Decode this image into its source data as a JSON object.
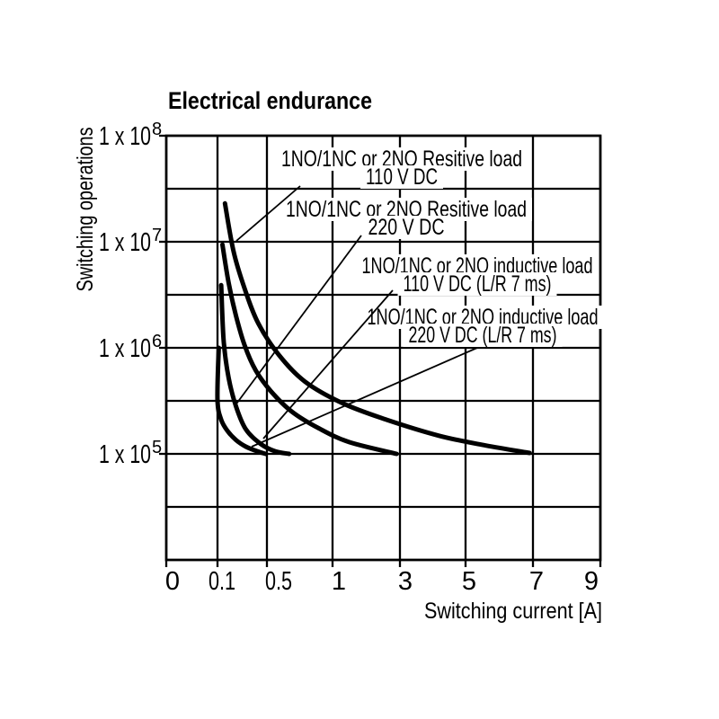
{
  "colors": {
    "ink": "#000000",
    "background": "#ffffff"
  },
  "chart_data": {
    "type": "line",
    "title": "Electrical endurance",
    "xlabel": "Switching current [A]",
    "ylabel": "Switching operations",
    "x_scale": "segmented-linear",
    "y_scale": "log",
    "x_ticks": [
      0,
      0.1,
      0.5,
      1,
      3,
      5,
      7,
      9
    ],
    "x_tick_labels": [
      "0",
      "0.1",
      "0.5",
      "1",
      "3",
      "5",
      "7",
      "9"
    ],
    "y_ticks": [
      100000000,
      10000000,
      1000000,
      100000
    ],
    "y_tick_labels": [
      {
        "base": "1 x 10",
        "exp": "8"
      },
      {
        "base": "1 x 10",
        "exp": "7"
      },
      {
        "base": "1 x 10",
        "exp": "6"
      },
      {
        "base": "1 x 10",
        "exp": "5"
      }
    ],
    "ylim": [
      10000,
      100000000
    ],
    "grid": "on",
    "series": [
      {
        "name": "resistive-load-110v-dc",
        "label": [
          "1NO/1NC or 2NO Resitive load",
          "110 V DC"
        ],
        "points": [
          [
            0.16,
            23000000
          ],
          [
            0.23,
            8100000
          ],
          [
            0.32,
            3600000
          ],
          [
            0.43,
            1700000
          ],
          [
            0.59,
            860000
          ],
          [
            0.79,
            480000
          ],
          [
            1.3,
            300000
          ],
          [
            2.6,
            210000
          ],
          [
            4.2,
            148000
          ],
          [
            5.6,
            120000
          ],
          [
            6.9,
            102000
          ]
        ]
      },
      {
        "name": "resistive-load-220v-dc",
        "label": [
          "1NO/1NC or 2NO Resitive load",
          "220 V DC"
        ],
        "points": [
          [
            0.14,
            9400000
          ],
          [
            0.19,
            4100000
          ],
          [
            0.25,
            2000000
          ],
          [
            0.32,
            1050000
          ],
          [
            0.41,
            610000
          ],
          [
            0.53,
            390000
          ],
          [
            0.69,
            250000
          ],
          [
            0.9,
            173000
          ],
          [
            1.5,
            129000
          ],
          [
            2.9,
            100000
          ]
        ]
      },
      {
        "name": "inductive-load-110v-dc",
        "label": [
          "1NO/1NC or 2NO inductive load",
          "110 V DC (L/R 7 ms)"
        ],
        "points": [
          [
            0.13,
            3900000
          ],
          [
            0.15,
            1150000
          ],
          [
            0.19,
            520000
          ],
          [
            0.25,
            280000
          ],
          [
            0.33,
            170000
          ],
          [
            0.45,
            124000
          ],
          [
            0.56,
            106000
          ],
          [
            0.67,
            100000
          ]
        ]
      },
      {
        "name": "inductive-load-220v-dc",
        "label": [
          "1NO/1NC or 2NO inductive load",
          "220 V DC (L/R 7 ms)"
        ],
        "points": [
          [
            0.11,
            1000000
          ],
          [
            0.1,
            320000
          ],
          [
            0.13,
            210000
          ],
          [
            0.18,
            165000
          ],
          [
            0.25,
            135000
          ],
          [
            0.33,
            117000
          ],
          [
            0.42,
            106000
          ],
          [
            0.49,
            100000
          ]
        ]
      }
    ]
  }
}
